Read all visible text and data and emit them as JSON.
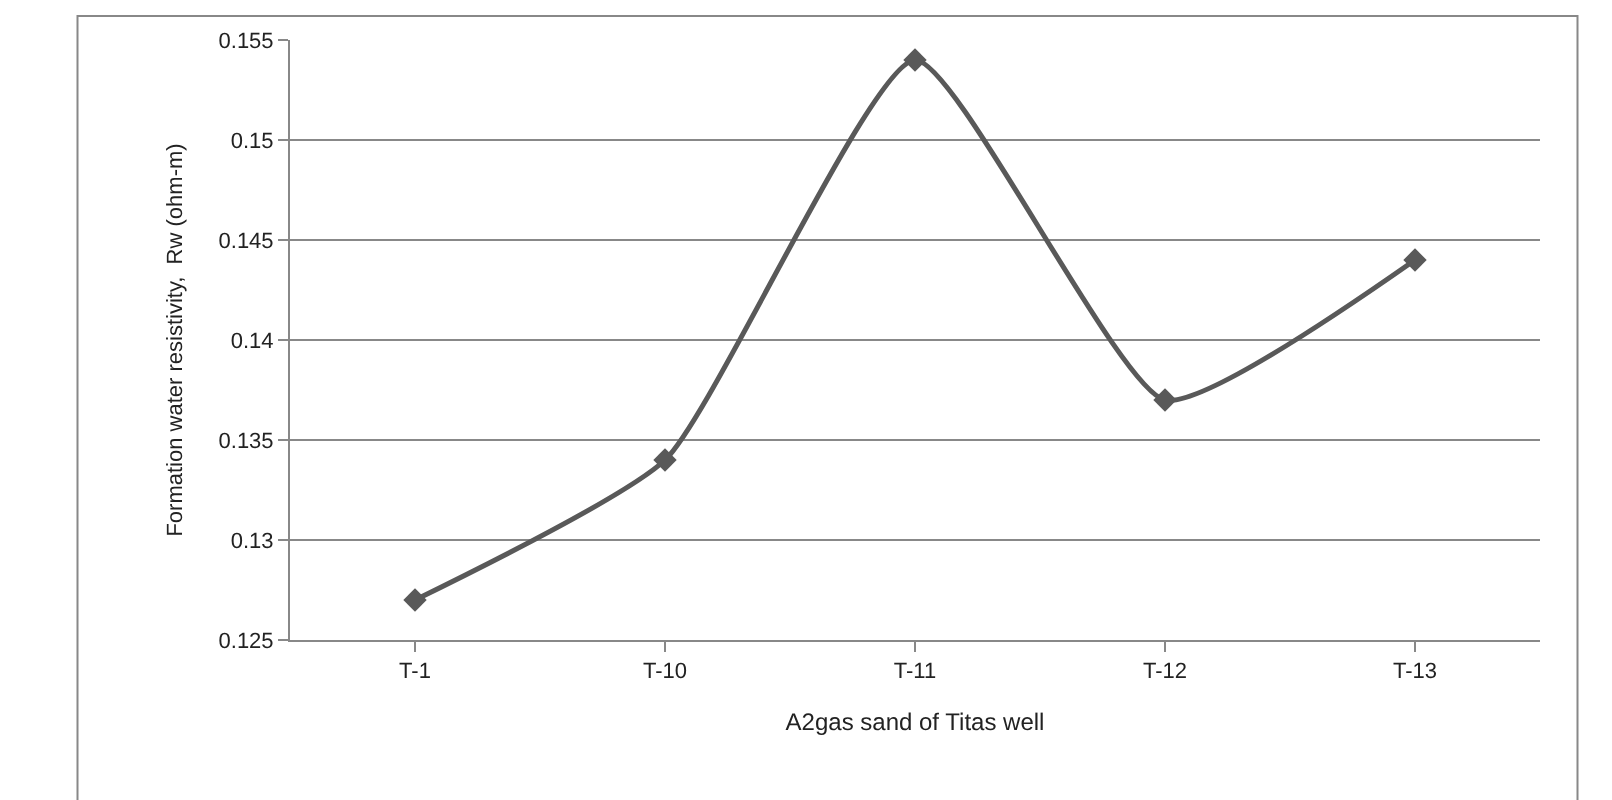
{
  "chart_data": {
    "type": "line",
    "xlabel": "A2gas sand of Titas well",
    "ylabel": "Formation water resistivity,  Rw (ohm-m)",
    "categories": [
      "T-1",
      "T-10",
      "T-11",
      "T-12",
      "T-13"
    ],
    "series": [
      {
        "color": "#595959",
        "values": [
          0.127,
          0.134,
          0.154,
          0.137,
          0.144
        ]
      }
    ],
    "ylim": [
      0.125,
      0.155
    ],
    "yticks": [
      0.125,
      0.13,
      0.135,
      0.14,
      0.145,
      0.15,
      0.155
    ],
    "grid": "y",
    "legend": false,
    "marker": "diamond",
    "line_style": "solid"
  }
}
